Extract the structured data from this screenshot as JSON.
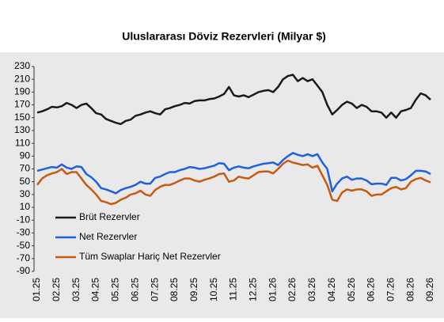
{
  "chart_data": {
    "type": "line",
    "title": "Uluslararası  Döviz Rezervleri  (Milyar $)",
    "categories": [
      "01.25",
      null,
      null,
      null,
      "02.25",
      null,
      null,
      null,
      "03.25",
      null,
      null,
      null,
      "04.25",
      null,
      null,
      null,
      "05.25",
      null,
      null,
      null,
      "06.25",
      null,
      null,
      null,
      "07.25",
      null,
      null,
      null,
      "08.25",
      null,
      null,
      null,
      "09.25",
      null,
      null,
      null,
      "10.25",
      null,
      null,
      null,
      "11.25",
      null,
      null,
      null,
      "12.25",
      null,
      null,
      null,
      "01.26",
      null,
      null,
      null,
      "02.26",
      null,
      null,
      null,
      "03.26",
      null,
      null,
      null,
      "04.26",
      null,
      null,
      null,
      "05.26",
      null,
      null,
      null,
      "06.26",
      null,
      null,
      null,
      "07.26",
      null,
      null,
      null,
      "08.26",
      null,
      null,
      null,
      "09.26"
    ],
    "series": [
      {
        "name": "Brüt Rezervler",
        "color": "#1a1a1a",
        "values": [
          158,
          160,
          163,
          167,
          166,
          168,
          173,
          170,
          165,
          170,
          172,
          165,
          157,
          155,
          148,
          145,
          142,
          140,
          145,
          147,
          153,
          155,
          158,
          160,
          157,
          155,
          163,
          165,
          168,
          170,
          173,
          172,
          176,
          177,
          177,
          179,
          180,
          183,
          187,
          198,
          185,
          183,
          185,
          182,
          186,
          190,
          192,
          193,
          190,
          198,
          210,
          215,
          217,
          207,
          212,
          207,
          210,
          200,
          190,
          170,
          155,
          162,
          170,
          175,
          172,
          165,
          170,
          167,
          160,
          160,
          158,
          150,
          158,
          150,
          160,
          162,
          165,
          178,
          188,
          185,
          178
        ]
      },
      {
        "name": "Net Rezervler",
        "color": "#1f5fe0",
        "values": [
          67,
          69,
          71,
          73,
          72,
          77,
          72,
          70,
          74,
          73,
          62,
          57,
          50,
          40,
          38,
          35,
          32,
          37,
          40,
          42,
          45,
          50,
          47,
          47,
          56,
          58,
          62,
          65,
          65,
          68,
          70,
          73,
          72,
          70,
          71,
          73,
          75,
          79,
          78,
          68,
          72,
          74,
          72,
          71,
          74,
          76,
          78,
          79,
          80,
          76,
          84,
          90,
          95,
          92,
          90,
          93,
          90,
          93,
          80,
          70,
          35,
          47,
          55,
          58,
          53,
          55,
          55,
          52,
          46,
          47,
          47,
          45,
          56,
          56,
          52,
          54,
          60,
          67,
          67,
          66,
          62
        ]
      },
      {
        "name": "Tüm Swaplar Hariç Net Rezervler",
        "color": "#c55a11",
        "values": [
          45,
          55,
          60,
          63,
          65,
          70,
          62,
          65,
          65,
          55,
          45,
          38,
          30,
          20,
          18,
          15,
          17,
          22,
          25,
          30,
          32,
          36,
          30,
          28,
          37,
          42,
          45,
          45,
          48,
          52,
          55,
          55,
          52,
          50,
          53,
          55,
          58,
          62,
          63,
          50,
          52,
          58,
          56,
          55,
          60,
          65,
          66,
          66,
          63,
          70,
          78,
          83,
          80,
          78,
          76,
          77,
          72,
          75,
          60,
          45,
          22,
          20,
          33,
          38,
          36,
          38,
          38,
          35,
          28,
          30,
          30,
          35,
          40,
          42,
          38,
          40,
          50,
          54,
          56,
          52,
          49
        ]
      }
    ],
    "ylim": [
      -90,
      230
    ],
    "yticks": [
      -90,
      -70,
      -50,
      -30,
      -10,
      10,
      30,
      50,
      70,
      90,
      110,
      130,
      150,
      170,
      190,
      210,
      230
    ],
    "legend": "lower-left"
  }
}
